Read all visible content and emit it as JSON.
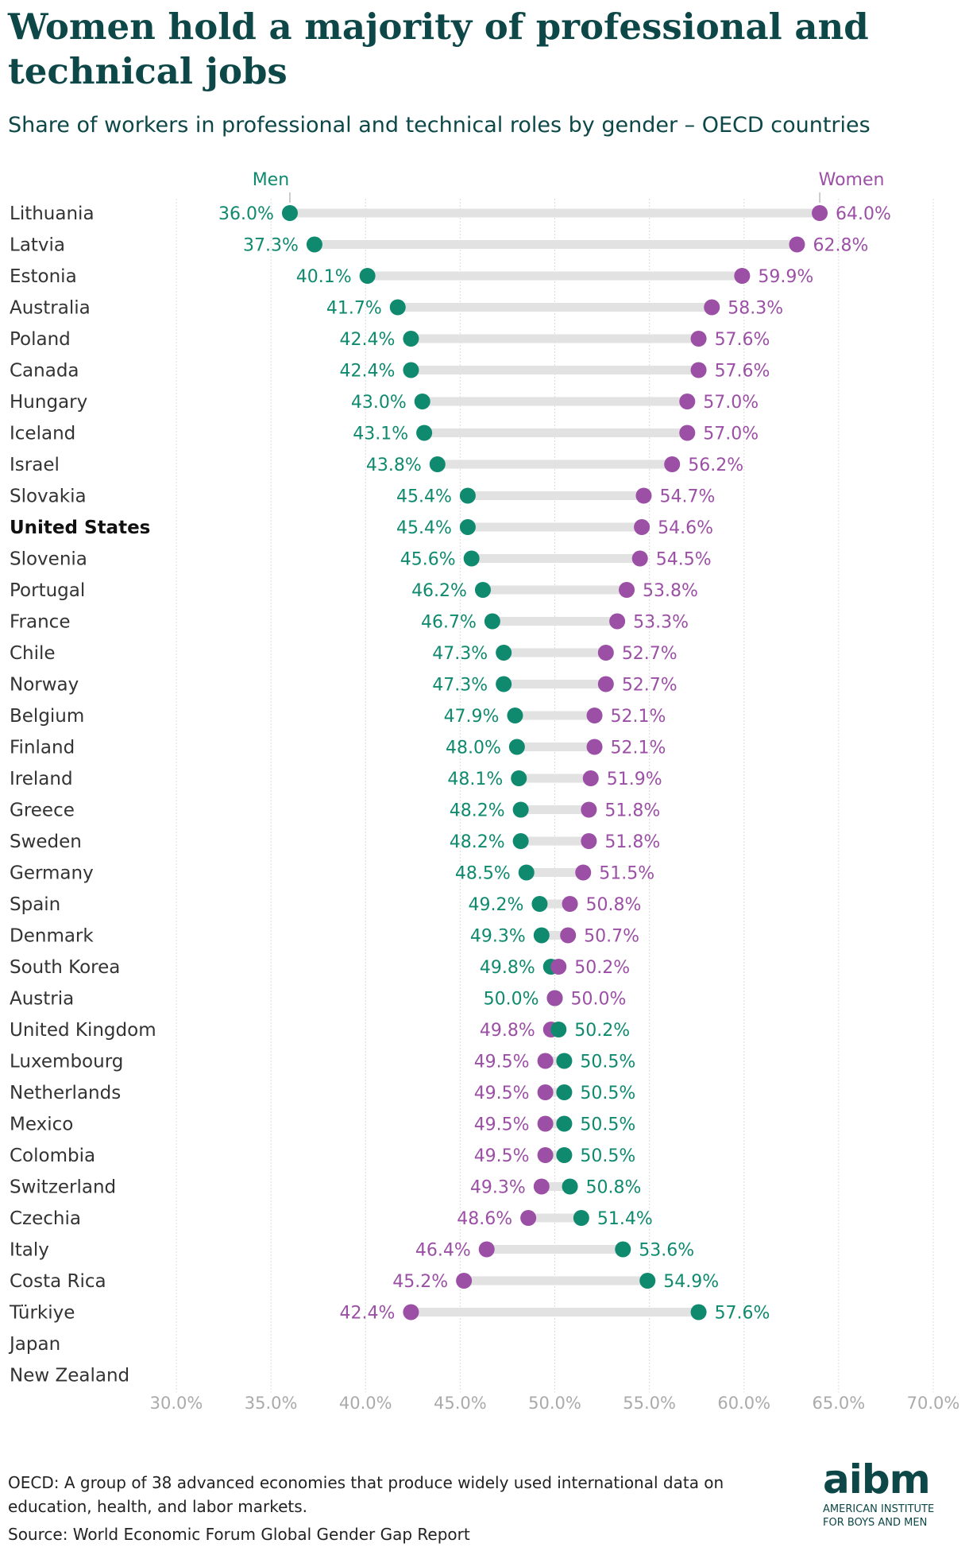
{
  "header": {
    "title": "Women hold a majority of professional and technical jobs",
    "subtitle": "Share of workers in professional and technical roles by gender – OECD countries"
  },
  "footer": {
    "note": "OECD: A group of 38 advanced economies that produce widely used international data on education, health, and labor markets.",
    "source": "Source: World Economic Forum Global Gender Gap Report"
  },
  "logo": {
    "mark": "aibm",
    "line1": "AMERICAN INSTITUTE",
    "line2": "FOR BOYS AND MEN"
  },
  "chart_data": {
    "type": "dumbbell",
    "xlim": [
      30,
      70
    ],
    "x_ticks": [
      "30.0%",
      "35.0%",
      "40.0%",
      "45.0%",
      "50.0%",
      "55.0%",
      "60.0%",
      "65.0%",
      "70.0%"
    ],
    "grid": true,
    "series": [
      {
        "name": "Men",
        "color": "#0f8a6e"
      },
      {
        "name": "Women",
        "color": "#9b4fa5"
      }
    ],
    "highlight": "United States",
    "categories": [
      "Lithuania",
      "Latvia",
      "Estonia",
      "Australia",
      "Poland",
      "Canada",
      "Hungary",
      "Iceland",
      "Israel",
      "Slovakia",
      "United States",
      "Slovenia",
      "Portugal",
      "France",
      "Chile",
      "Norway",
      "Belgium",
      "Finland",
      "Ireland",
      "Greece",
      "Sweden",
      "Germany",
      "Spain",
      "Denmark",
      "South Korea",
      "Austria",
      "United Kingdom",
      "Luxembourg",
      "Netherlands",
      "Mexico",
      "Colombia",
      "Switzerland",
      "Czechia",
      "Italy",
      "Costa Rica",
      "Türkiye",
      "Japan",
      "New Zealand"
    ],
    "men": [
      36.0,
      37.3,
      40.1,
      41.7,
      42.4,
      42.4,
      43.0,
      43.1,
      43.8,
      45.4,
      45.4,
      45.6,
      46.2,
      46.7,
      47.3,
      47.3,
      47.9,
      48.0,
      48.1,
      48.2,
      48.2,
      48.5,
      49.2,
      49.3,
      49.8,
      50.0,
      50.2,
      50.5,
      50.5,
      50.5,
      50.5,
      50.8,
      51.4,
      53.6,
      54.9,
      57.6,
      null,
      null
    ],
    "women": [
      64.0,
      62.8,
      59.9,
      58.3,
      57.6,
      57.6,
      57.0,
      57.0,
      56.2,
      54.7,
      54.6,
      54.5,
      53.8,
      53.3,
      52.7,
      52.7,
      52.1,
      52.1,
      51.9,
      51.8,
      51.8,
      51.5,
      50.8,
      50.7,
      50.2,
      50.0,
      49.8,
      49.5,
      49.5,
      49.5,
      49.5,
      49.3,
      48.6,
      46.4,
      45.2,
      42.4,
      null,
      null
    ],
    "men_labels": [
      "36.0%",
      "37.3%",
      "40.1%",
      "41.7%",
      "42.4%",
      "42.4%",
      "43.0%",
      "43.1%",
      "43.8%",
      "45.4%",
      "45.4%",
      "45.6%",
      "46.2%",
      "46.7%",
      "47.3%",
      "47.3%",
      "47.9%",
      "48.0%",
      "48.1%",
      "48.2%",
      "48.2%",
      "48.5%",
      "49.2%",
      "49.3%",
      "49.8%",
      "50.0%",
      "50.2%",
      "50.5%",
      "50.5%",
      "50.5%",
      "50.5%",
      "50.8%",
      "51.4%",
      "53.6%",
      "54.9%",
      "57.6%",
      null,
      null
    ],
    "women_labels": [
      "64.0%",
      "62.8%",
      "59.9%",
      "58.3%",
      "57.6%",
      "57.6%",
      "57.0%",
      "57.0%",
      "56.2%",
      "54.7%",
      "54.6%",
      "54.5%",
      "53.8%",
      "53.3%",
      "52.7%",
      "52.7%",
      "52.1%",
      "52.1%",
      "51.9%",
      "51.8%",
      "51.8%",
      "51.5%",
      "50.8%",
      "50.7%",
      "50.2%",
      "50.0%",
      "49.8%",
      "49.5%",
      "49.5%",
      "49.5%",
      "49.5%",
      "49.3%",
      "48.6%",
      "46.4%",
      "45.2%",
      "42.4%",
      null,
      null
    ]
  }
}
